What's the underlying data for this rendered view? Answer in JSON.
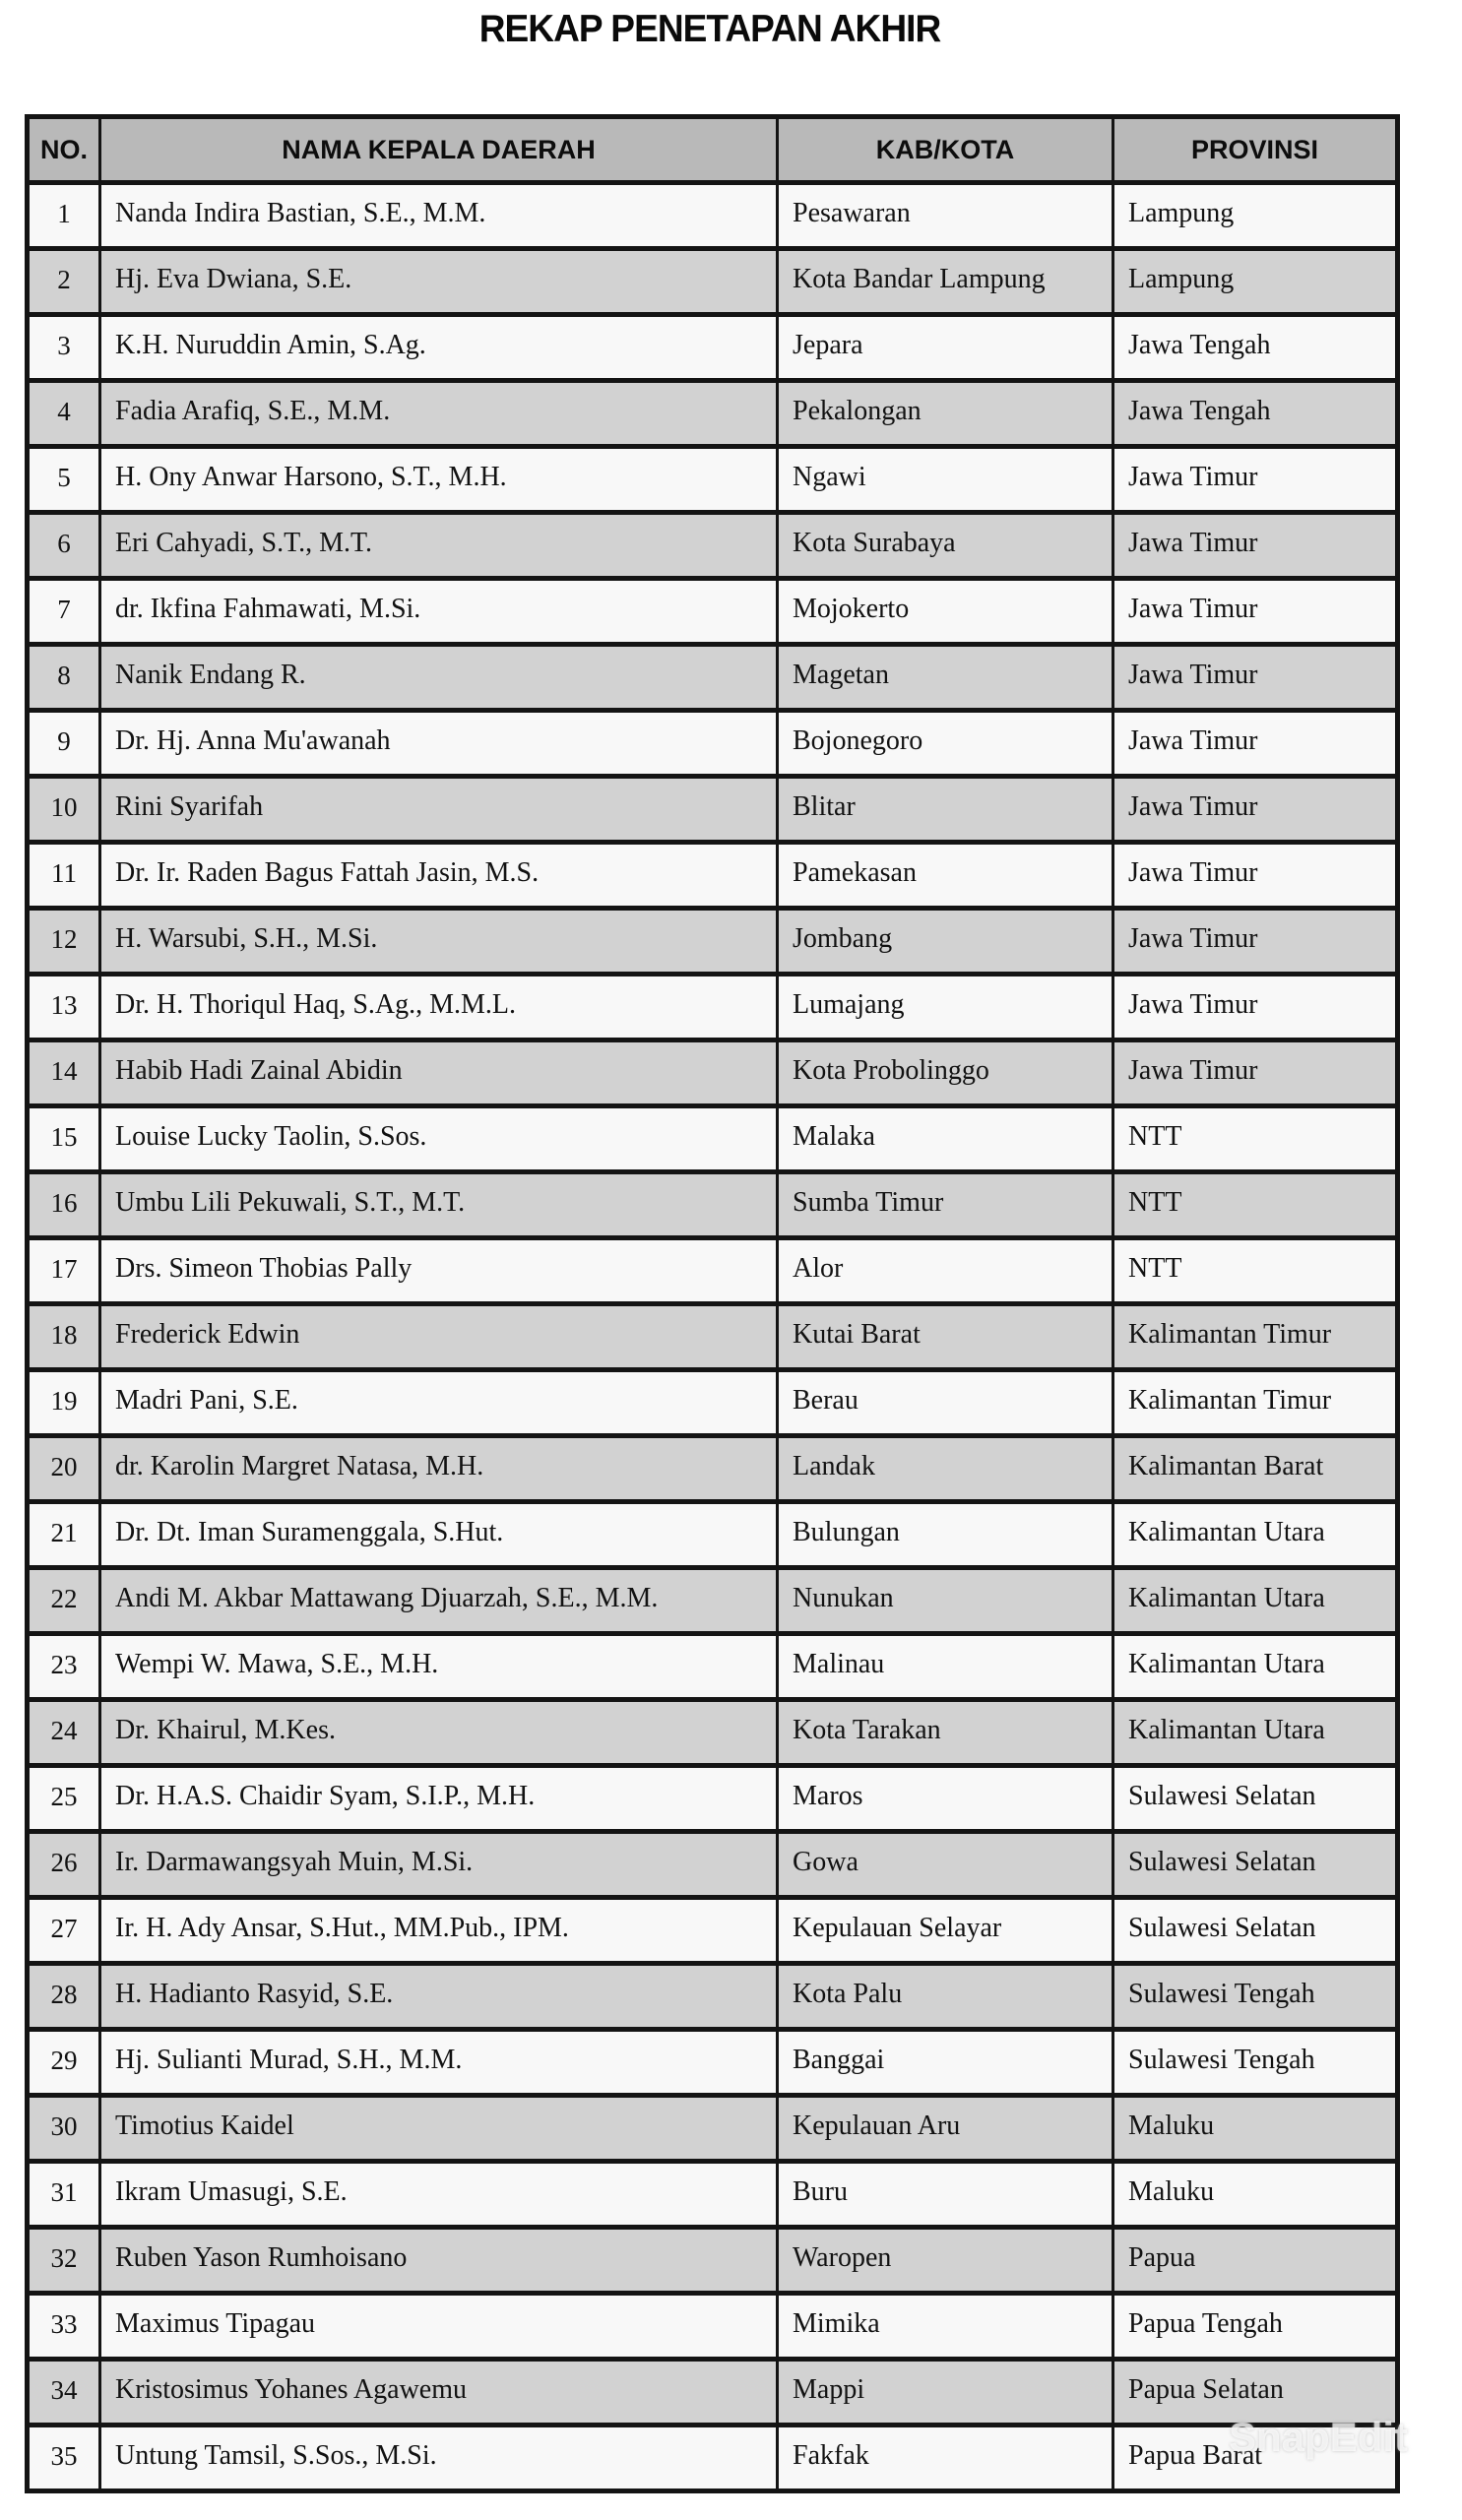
{
  "page": {
    "title": "REKAP PENETAPAN AKHIR",
    "watermark": "SnapEdit"
  },
  "colors": {
    "header_bg": "#b9b9b9",
    "row_bg": "#f8f8f8",
    "row_alt_bg": "#d2d2d2",
    "border": "#141414"
  },
  "table": {
    "columns": [
      "NO.",
      "NAMA KEPALA DAERAH",
      "KAB/KOTA",
      "PROVINSI"
    ],
    "rows": [
      {
        "no": "1",
        "nama": "Nanda Indira Bastian, S.E., M.M.",
        "kab_kota": "Pesawaran",
        "provinsi": "Lampung"
      },
      {
        "no": "2",
        "nama": "Hj. Eva Dwiana, S.E.",
        "kab_kota": "Kota Bandar Lampung",
        "provinsi": "Lampung"
      },
      {
        "no": "3",
        "nama": "K.H. Nuruddin Amin, S.Ag.",
        "kab_kota": "Jepara",
        "provinsi": "Jawa Tengah"
      },
      {
        "no": "4",
        "nama": "Fadia Arafiq, S.E., M.M.",
        "kab_kota": "Pekalongan",
        "provinsi": "Jawa Tengah"
      },
      {
        "no": "5",
        "nama": "H. Ony Anwar Harsono, S.T., M.H.",
        "kab_kota": "Ngawi",
        "provinsi": "Jawa Timur"
      },
      {
        "no": "6",
        "nama": "Eri Cahyadi, S.T., M.T.",
        "kab_kota": "Kota Surabaya",
        "provinsi": "Jawa Timur"
      },
      {
        "no": "7",
        "nama": "dr. Ikfina Fahmawati, M.Si.",
        "kab_kota": "Mojokerto",
        "provinsi": "Jawa Timur"
      },
      {
        "no": "8",
        "nama": "Nanik Endang R.",
        "kab_kota": "Magetan",
        "provinsi": "Jawa Timur"
      },
      {
        "no": "9",
        "nama": "Dr. Hj. Anna Mu'awanah",
        "kab_kota": "Bojonegoro",
        "provinsi": "Jawa Timur"
      },
      {
        "no": "10",
        "nama": "Rini Syarifah",
        "kab_kota": "Blitar",
        "provinsi": "Jawa Timur"
      },
      {
        "no": "11",
        "nama": "Dr. Ir. Raden Bagus Fattah Jasin, M.S.",
        "kab_kota": "Pamekasan",
        "provinsi": "Jawa Timur"
      },
      {
        "no": "12",
        "nama": "H. Warsubi, S.H., M.Si.",
        "kab_kota": "Jombang",
        "provinsi": "Jawa Timur"
      },
      {
        "no": "13",
        "nama": "Dr. H. Thoriqul Haq, S.Ag., M.M.L.",
        "kab_kota": "Lumajang",
        "provinsi": "Jawa Timur"
      },
      {
        "no": "14",
        "nama": "Habib Hadi Zainal Abidin",
        "kab_kota": "Kota Probolinggo",
        "provinsi": "Jawa Timur"
      },
      {
        "no": "15",
        "nama": "Louise Lucky Taolin, S.Sos.",
        "kab_kota": "Malaka",
        "provinsi": "NTT"
      },
      {
        "no": "16",
        "nama": "Umbu Lili Pekuwali, S.T., M.T.",
        "kab_kota": "Sumba Timur",
        "provinsi": "NTT"
      },
      {
        "no": "17",
        "nama": "Drs. Simeon Thobias Pally",
        "kab_kota": "Alor",
        "provinsi": "NTT"
      },
      {
        "no": "18",
        "nama": "Frederick Edwin",
        "kab_kota": "Kutai Barat",
        "provinsi": "Kalimantan Timur"
      },
      {
        "no": "19",
        "nama": "Madri Pani, S.E.",
        "kab_kota": "Berau",
        "provinsi": "Kalimantan Timur"
      },
      {
        "no": "20",
        "nama": "dr. Karolin Margret Natasa, M.H.",
        "kab_kota": "Landak",
        "provinsi": "Kalimantan Barat"
      },
      {
        "no": "21",
        "nama": "Dr. Dt. Iman Suramenggala, S.Hut.",
        "kab_kota": "Bulungan",
        "provinsi": "Kalimantan Utara"
      },
      {
        "no": "22",
        "nama": "Andi M. Akbar Mattawang Djuarzah, S.E., M.M.",
        "kab_kota": "Nunukan",
        "provinsi": "Kalimantan Utara"
      },
      {
        "no": "23",
        "nama": "Wempi W. Mawa, S.E., M.H.",
        "kab_kota": "Malinau",
        "provinsi": "Kalimantan Utara"
      },
      {
        "no": "24",
        "nama": "Dr. Khairul, M.Kes.",
        "kab_kota": "Kota Tarakan",
        "provinsi": "Kalimantan Utara"
      },
      {
        "no": "25",
        "nama": "Dr. H.A.S. Chaidir Syam, S.I.P., M.H.",
        "kab_kota": "Maros",
        "provinsi": "Sulawesi Selatan"
      },
      {
        "no": "26",
        "nama": "Ir. Darmawangsyah Muin, M.Si.",
        "kab_kota": "Gowa",
        "provinsi": "Sulawesi Selatan"
      },
      {
        "no": "27",
        "nama": "Ir. H. Ady Ansar, S.Hut., MM.Pub., IPM.",
        "kab_kota": "Kepulauan Selayar",
        "provinsi": "Sulawesi Selatan"
      },
      {
        "no": "28",
        "nama": "H. Hadianto Rasyid, S.E.",
        "kab_kota": "Kota Palu",
        "provinsi": "Sulawesi Tengah"
      },
      {
        "no": "29",
        "nama": "Hj. Sulianti Murad, S.H., M.M.",
        "kab_kota": "Banggai",
        "provinsi": "Sulawesi Tengah"
      },
      {
        "no": "30",
        "nama": "Timotius Kaidel",
        "kab_kota": "Kepulauan Aru",
        "provinsi": "Maluku"
      },
      {
        "no": "31",
        "nama": "Ikram Umasugi, S.E.",
        "kab_kota": "Buru",
        "provinsi": "Maluku"
      },
      {
        "no": "32",
        "nama": "Ruben Yason Rumhoisano",
        "kab_kota": "Waropen",
        "provinsi": "Papua"
      },
      {
        "no": "33",
        "nama": "Maximus Tipagau",
        "kab_kota": "Mimika",
        "provinsi": "Papua Tengah"
      },
      {
        "no": "34",
        "nama": "Kristosimus Yohanes Agawemu",
        "kab_kota": "Mappi",
        "provinsi": "Papua Selatan"
      },
      {
        "no": "35",
        "nama": "Untung Tamsil, S.Sos., M.Si.",
        "kab_kota": "Fakfak",
        "provinsi": "Papua Barat"
      }
    ]
  }
}
